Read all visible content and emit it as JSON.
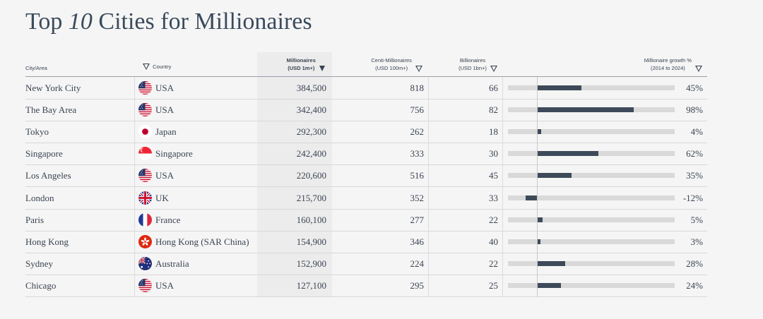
{
  "title": {
    "prefix": "Top ",
    "number": "10",
    "suffix": " Cities for Millionaires"
  },
  "headers": {
    "city": "City/Area",
    "country": "Country",
    "millionaires_1": "Millionaires",
    "millionaires_2": "(USD 1m+)",
    "centi_1": "Centi-Millionaires",
    "centi_2": "(USD 100m+)",
    "billionaires_1": "Billionaires",
    "billionaires_2": "(USD 1bn+)",
    "growth_1": "Millionaire growth %",
    "growth_2": "(2014 to 2024)"
  },
  "colors": {
    "bar": "#3d4a59",
    "track": "#d9d9d9",
    "sorted_column": "#ececec"
  },
  "chart_data": {
    "type": "table",
    "columns": [
      "City/Area",
      "Country",
      "Millionaires (USD 1m+)",
      "Centi-Millionaires (USD 100m+)",
      "Billionaires (USD 1bn+)",
      "Millionaire growth % (2014 to 2024)"
    ],
    "rows": [
      {
        "city": "New York City",
        "country": "USA",
        "flag": "us-flag-icon",
        "millionaires": "384,500",
        "centi": "818",
        "billionaires": "66",
        "growth": 45,
        "growth_label": "45%"
      },
      {
        "city": "The Bay Area",
        "country": "USA",
        "flag": "us-flag-icon",
        "millionaires": "342,400",
        "centi": "756",
        "billionaires": "82",
        "growth": 98,
        "growth_label": "98%"
      },
      {
        "city": "Tokyo",
        "country": "Japan",
        "flag": "japan-flag-icon",
        "millionaires": "292,300",
        "centi": "262",
        "billionaires": "18",
        "growth": 4,
        "growth_label": "4%"
      },
      {
        "city": "Singapore",
        "country": "Singapore",
        "flag": "singapore-flag-icon",
        "millionaires": "242,400",
        "centi": "333",
        "billionaires": "30",
        "growth": 62,
        "growth_label": "62%"
      },
      {
        "city": "Los Angeles",
        "country": "USA",
        "flag": "us-flag-icon",
        "millionaires": "220,600",
        "centi": "516",
        "billionaires": "45",
        "growth": 35,
        "growth_label": "35%"
      },
      {
        "city": "London",
        "country": "UK",
        "flag": "uk-flag-icon",
        "millionaires": "215,700",
        "centi": "352",
        "billionaires": "33",
        "growth": -12,
        "growth_label": "-12%"
      },
      {
        "city": "Paris",
        "country": "France",
        "flag": "france-flag-icon",
        "millionaires": "160,100",
        "centi": "277",
        "billionaires": "22",
        "growth": 5,
        "growth_label": "5%"
      },
      {
        "city": "Hong Kong",
        "country": "Hong Kong (SAR China)",
        "flag": "hong-kong-flag-icon",
        "millionaires": "154,900",
        "centi": "346",
        "billionaires": "40",
        "growth": 3,
        "growth_label": "3%"
      },
      {
        "city": "Sydney",
        "country": "Australia",
        "flag": "australia-flag-icon",
        "millionaires": "152,900",
        "centi": "224",
        "billionaires": "22",
        "growth": 28,
        "growth_label": "28%"
      },
      {
        "city": "Chicago",
        "country": "USA",
        "flag": "us-flag-icon",
        "millionaires": "127,100",
        "centi": "295",
        "billionaires": "25",
        "growth": 24,
        "growth_label": "24%"
      }
    ],
    "growth_axis": {
      "min": -30,
      "max": 140
    },
    "sorted_by": "Millionaires (USD 1m+)"
  }
}
